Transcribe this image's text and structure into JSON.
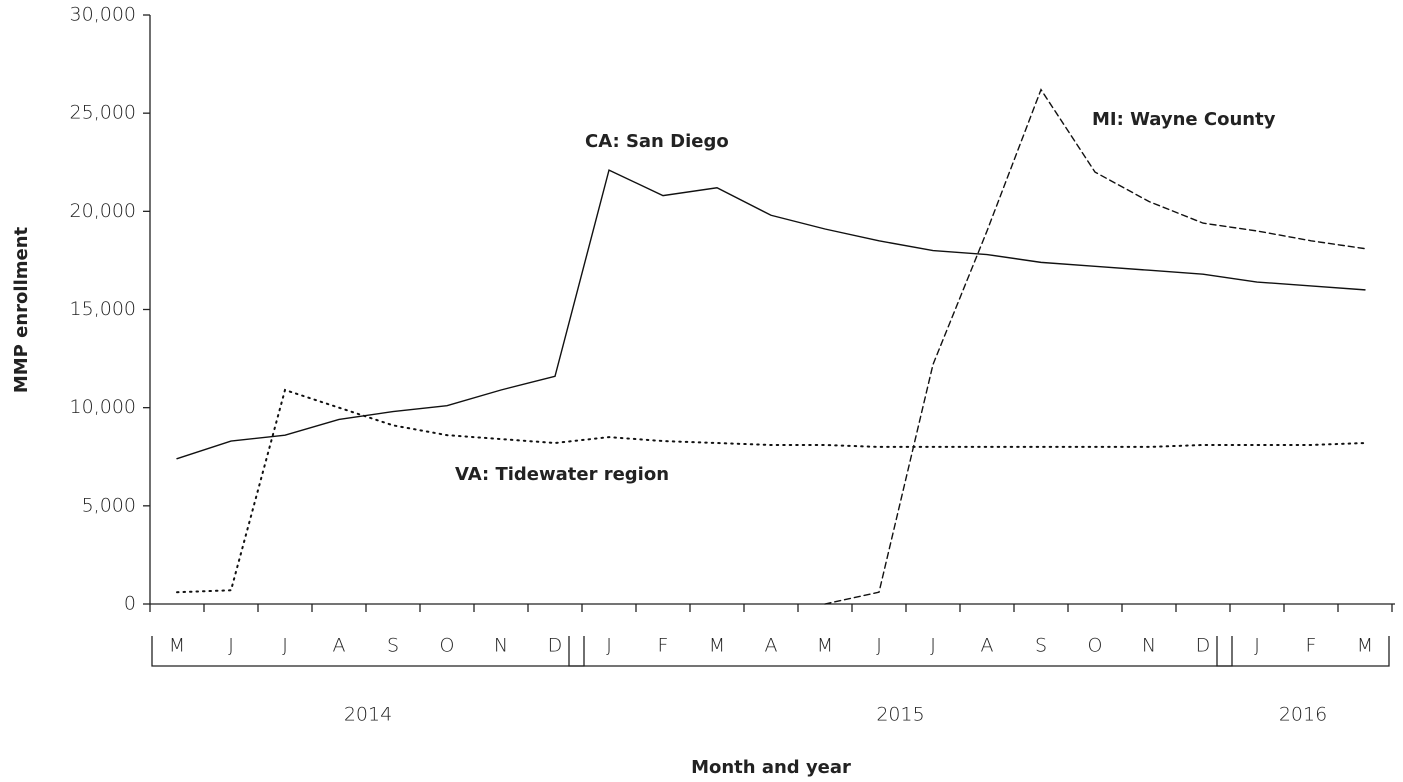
{
  "chart_data": {
    "type": "line",
    "y_label": "MMP enrollment",
    "x_label": "Month and year",
    "categories": [
      "M",
      "J",
      "J",
      "A",
      "S",
      "O",
      "N",
      "D",
      "J",
      "F",
      "M",
      "A",
      "M",
      "J",
      "J",
      "A",
      "S",
      "O",
      "N",
      "D",
      "J",
      "F",
      "M"
    ],
    "x_groups": [
      {
        "label": "2014",
        "start": 0,
        "end": 7
      },
      {
        "label": "2015",
        "start": 8,
        "end": 19
      },
      {
        "label": "2016",
        "start": 20,
        "end": 22
      }
    ],
    "series": [
      {
        "name": "CA: San Diego",
        "color": "#111",
        "style": "solid",
        "values": [
          7400,
          8300,
          8600,
          9400,
          9800,
          10100,
          10900,
          11600,
          22100,
          20800,
          21200,
          19800,
          19100,
          18500,
          18000,
          17800,
          17400,
          17200,
          17000,
          16800,
          16400,
          16200,
          16000
        ]
      },
      {
        "name": "VA: Tidewater region",
        "color": "#111",
        "style": "dotted",
        "values": [
          600,
          700,
          10900,
          10000,
          9100,
          8600,
          8400,
          8200,
          8500,
          8300,
          8200,
          8100,
          8100,
          8000,
          8000,
          8000,
          8000,
          8000,
          8000,
          8100,
          8100,
          8100,
          8200
        ]
      },
      {
        "name": "MI: Wayne County",
        "color": "#111",
        "style": "dashed",
        "values": [
          null,
          null,
          null,
          null,
          null,
          null,
          null,
          null,
          null,
          null,
          null,
          null,
          0,
          600,
          12200,
          19000,
          26200,
          22000,
          20500,
          19400,
          19000,
          18500,
          18100
        ]
      }
    ],
    "ylim": [
      0,
      30000
    ],
    "yticks": [
      0,
      {
        "value": 5000,
        "label": "5,000"
      },
      {
        "value": 10000,
        "label": "10,000"
      },
      {
        "value": 15000,
        "label": "15,000"
      },
      {
        "value": 20000,
        "label": "20,000"
      },
      {
        "value": 25000,
        "label": "25,000"
      },
      {
        "value": 30000,
        "label": "30,000"
      }
    ]
  }
}
